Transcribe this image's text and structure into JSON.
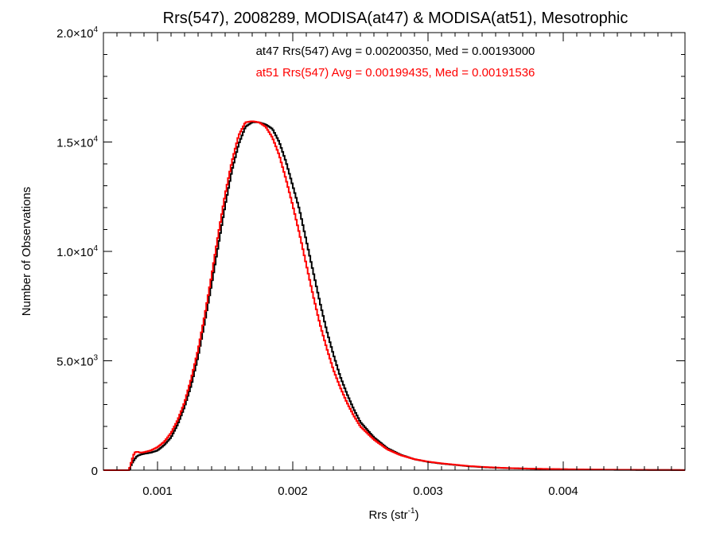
{
  "chart_data": {
    "type": "line",
    "title": "Rrs(547), 2008289, MODISA(at47) & MODISA(at51), Mesotrophic",
    "xlabel": "Rrs (str",
    "xlabel_sup": "-1",
    "xlabel_end": ")",
    "ylabel": "Number of Observations",
    "xlim": [
      0.0006,
      0.0049
    ],
    "ylim": [
      0,
      20000
    ],
    "xticks": [
      {
        "value": 0.001,
        "label": "0.001"
      },
      {
        "value": 0.002,
        "label": "0.002"
      },
      {
        "value": 0.003,
        "label": "0.003"
      },
      {
        "value": 0.004,
        "label": "0.004"
      }
    ],
    "yticks": [
      {
        "value": 0,
        "mant": "0",
        "exp": ""
      },
      {
        "value": 5000,
        "mant": "5.0×10",
        "exp": "3"
      },
      {
        "value": 10000,
        "mant": "1.0×10",
        "exp": "4"
      },
      {
        "value": 15000,
        "mant": "1.5×10",
        "exp": "4"
      },
      {
        "value": 20000,
        "mant": "2.0×10",
        "exp": "4"
      }
    ],
    "x_minor_step": 0.0001,
    "y_minor_step": 1000,
    "grid": false,
    "bin_width": 1e-05,
    "annotations": [
      {
        "text": "at47 Rrs(547) Avg = 0.00200350, Med = 0.00193000",
        "color": "#000000"
      },
      {
        "text": "at51 Rrs(547) Avg = 0.00199435, Med = 0.00191536",
        "color": "#ff0000"
      }
    ],
    "series": [
      {
        "name": "at47",
        "color": "#000000",
        "x": [
          0.0006,
          0.00079,
          0.00081,
          0.00083,
          0.00085,
          0.00087,
          0.0009,
          0.00095,
          0.001,
          0.00105,
          0.0011,
          0.00115,
          0.0012,
          0.00125,
          0.0013,
          0.00135,
          0.0014,
          0.00145,
          0.0015,
          0.00155,
          0.0016,
          0.00165,
          0.0017,
          0.00175,
          0.0018,
          0.00185,
          0.0019,
          0.00195,
          0.002,
          0.00205,
          0.0021,
          0.00215,
          0.0022,
          0.00225,
          0.0023,
          0.00235,
          0.0024,
          0.00245,
          0.0025,
          0.0026,
          0.0027,
          0.0028,
          0.0029,
          0.003,
          0.0031,
          0.0032,
          0.0033,
          0.0034,
          0.0035,
          0.0036,
          0.0038,
          0.004,
          0.0042,
          0.0044,
          0.0046,
          0.0049
        ],
        "y": [
          0,
          0,
          300,
          500,
          650,
          700,
          750,
          800,
          900,
          1150,
          1500,
          2100,
          2900,
          3900,
          5200,
          6800,
          8500,
          10300,
          12100,
          13700,
          14900,
          15700,
          15900,
          15900,
          15800,
          15600,
          15000,
          14100,
          13000,
          11900,
          10500,
          9100,
          7700,
          6400,
          5300,
          4300,
          3500,
          2800,
          2200,
          1500,
          1000,
          700,
          500,
          380,
          300,
          240,
          180,
          140,
          110,
          90,
          60,
          40,
          25,
          15,
          10,
          5
        ]
      },
      {
        "name": "at51",
        "color": "#ff0000",
        "x": [
          0.0006,
          0.00079,
          0.00081,
          0.00083,
          0.00085,
          0.00087,
          0.0009,
          0.00095,
          0.001,
          0.00105,
          0.0011,
          0.00115,
          0.0012,
          0.00125,
          0.0013,
          0.00135,
          0.0014,
          0.00145,
          0.0015,
          0.00155,
          0.0016,
          0.00165,
          0.0017,
          0.00175,
          0.0018,
          0.00185,
          0.0019,
          0.00195,
          0.002,
          0.00205,
          0.0021,
          0.00215,
          0.0022,
          0.00225,
          0.0023,
          0.00235,
          0.0024,
          0.00245,
          0.0025,
          0.0026,
          0.0027,
          0.0028,
          0.0029,
          0.003,
          0.0031,
          0.0032,
          0.0033,
          0.0034,
          0.0035,
          0.0036,
          0.0038,
          0.004,
          0.0042,
          0.0044,
          0.0046,
          0.0049
        ],
        "y": [
          0,
          0,
          450,
          800,
          850,
          800,
          820,
          900,
          1050,
          1300,
          1700,
          2300,
          3100,
          4200,
          5500,
          7100,
          8900,
          10800,
          12600,
          14100,
          15300,
          15900,
          15950,
          15900,
          15700,
          15200,
          14400,
          13300,
          12100,
          10800,
          9400,
          8000,
          6700,
          5600,
          4600,
          3800,
          3100,
          2500,
          2000,
          1400,
          950,
          680,
          500,
          390,
          310,
          250,
          190,
          150,
          120,
          95,
          65,
          45,
          30,
          20,
          12,
          6
        ]
      }
    ]
  }
}
